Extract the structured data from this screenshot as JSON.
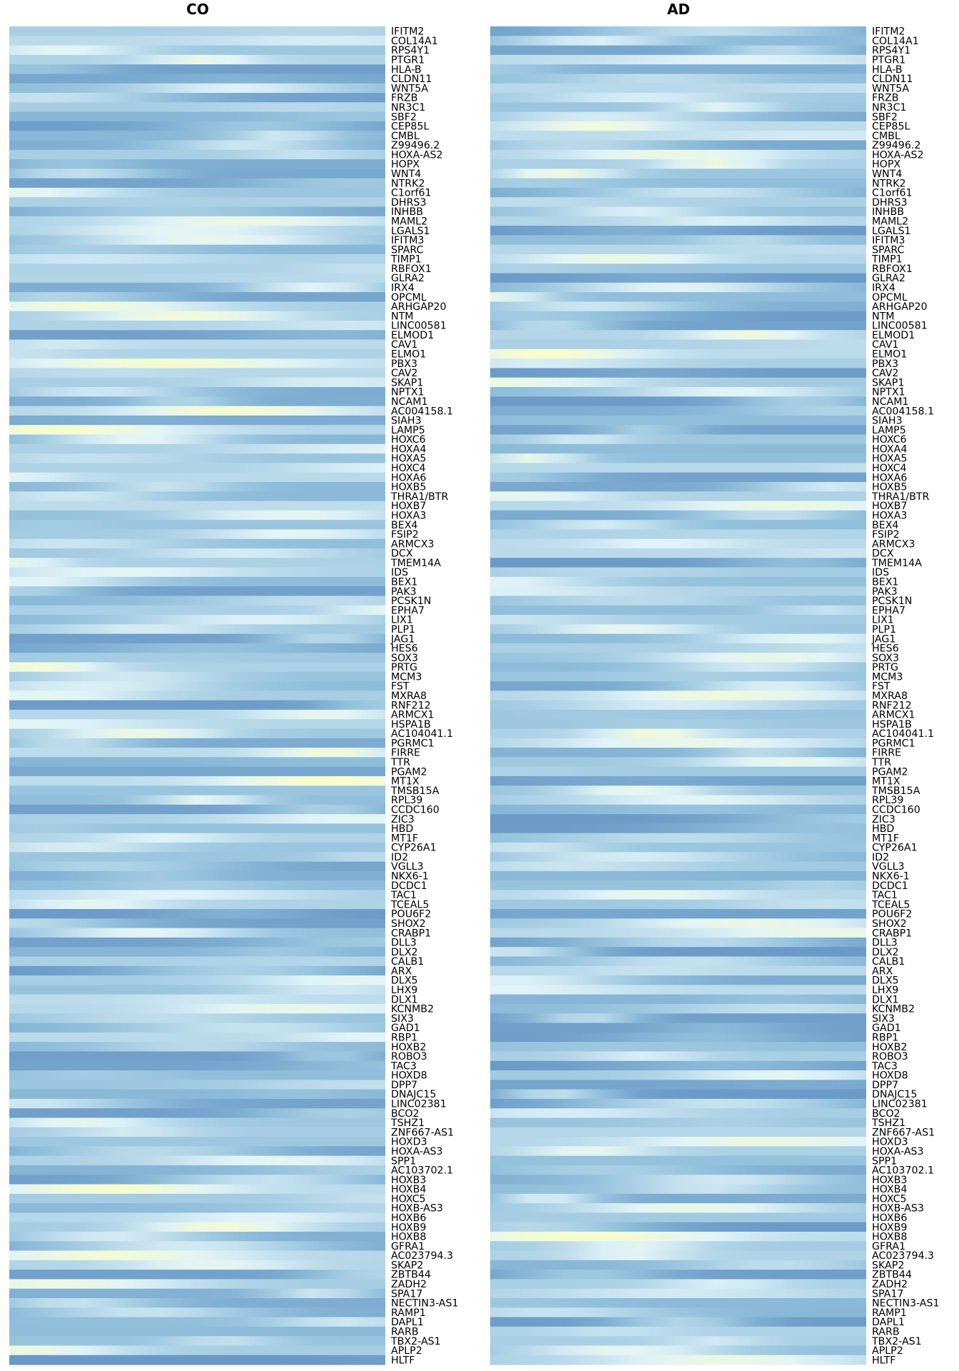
{
  "chart_data": {
    "type": "heatmap",
    "panels": [
      {
        "title": "CO",
        "rows": [
          "IFITM2",
          "COL14A1",
          "RPS4Y1",
          "PTGR1",
          "HLA-B",
          "CLDN11",
          "WNT5A",
          "FRZB",
          "NR3C1",
          "SBF2",
          "CEP85L",
          "CMBL",
          "Z99496.2",
          "HOXA-AS2",
          "HOPX",
          "WNT4",
          "NTRK2",
          "C1orf61",
          "DHRS3",
          "INHBB",
          "MAML2",
          "LGALS1",
          "IFITM3",
          "SPARC",
          "TIMP1",
          "RBFOX1",
          "GLRA2",
          "IRX4",
          "OPCML",
          "ARHGAP20",
          "NTM",
          "LINC00581",
          "ELMOD1",
          "CAV1",
          "ELMO1",
          "PBX3",
          "CAV2",
          "SKAP1",
          "NPTX1",
          "NCAM1",
          "AC004158.1",
          "SIAH3",
          "LAMP5",
          "HOXC6",
          "HOXA4",
          "HOXA5",
          "HOXC4",
          "HOXA6",
          "HOXB5",
          "THRA1/BTR",
          "HOXB7",
          "HOXA3",
          "BEX4",
          "FSIP2",
          "ARMCX3",
          "DCX",
          "TMEM14A",
          "IDS",
          "BEX1",
          "PAK3",
          "PCSK1N",
          "EPHA7",
          "LIX1",
          "PLP1",
          "JAG1",
          "HES6",
          "SOX3",
          "PRTG",
          "MCM3",
          "FST",
          "MXRA8",
          "RNF212",
          "ARMCX1",
          "HSPA1B",
          "AC104041.1",
          "PGRMC1",
          "FIRRE",
          "TTR",
          "PGAM2",
          "MT1X",
          "TMSB15A",
          "RPL39",
          "CCDC160",
          "ZIC3",
          "HBD",
          "MT1F",
          "CYP26A1",
          "ID2",
          "VGLL3",
          "NKX6-1",
          "DCDC1",
          "TAC1",
          "TCEAL5",
          "POU6F2",
          "SHOX2",
          "CRABP1",
          "DLL3",
          "DLX2",
          "CALB1",
          "ARX",
          "DLX5",
          "LHX9",
          "DLX1",
          "KCNMB2",
          "SIX3",
          "GAD1",
          "RBP1",
          "HOXB2",
          "ROBO3",
          "TAC3",
          "HOXD8",
          "DPP7",
          "DNAJC15",
          "LINC02381",
          "BCO2",
          "TSHZ1",
          "ZNF667-AS1",
          "HOXD3",
          "HOXA-AS3",
          "SPP1",
          "AC103702.1",
          "HOXB3",
          "HOXB4",
          "HOXC5",
          "HOXB-AS3",
          "HOXB6",
          "HOXB9",
          "HOXB8",
          "GFRA1",
          "AC023794.3",
          "SKAP2",
          "ZBTB44",
          "ZADH2",
          "SPA17",
          "NECTIN3-AS1",
          "RAMP1",
          "DAPL1",
          "RARB",
          "TBX2-AS1",
          "APLP2",
          "HLTF"
        ]
      },
      {
        "title": "AD",
        "rows": [
          "IFITM2",
          "COL14A1",
          "RPS4Y1",
          "PTGR1",
          "HLA-B",
          "CLDN11",
          "WNT5A",
          "FRZB",
          "NR3C1",
          "SBF2",
          "CEP85L",
          "CMBL",
          "Z99496.2",
          "HOXA-AS2",
          "HOPX",
          "WNT4",
          "NTRK2",
          "C1orf61",
          "DHRS3",
          "INHBB",
          "MAML2",
          "LGALS1",
          "IFITM3",
          "SPARC",
          "TIMP1",
          "RBFOX1",
          "GLRA2",
          "IRX4",
          "OPCML",
          "ARHGAP20",
          "NTM",
          "LINC00581",
          "ELMOD1",
          "CAV1",
          "ELMO1",
          "PBX3",
          "CAV2",
          "SKAP1",
          "NPTX1",
          "NCAM1",
          "AC004158.1",
          "SIAH3",
          "LAMP5",
          "HOXC6",
          "HOXA4",
          "HOXA5",
          "HOXC4",
          "HOXA6",
          "HOXB5",
          "THRA1/BTR",
          "HOXB7",
          "HOXA3",
          "BEX4",
          "FSIP2",
          "ARMCX3",
          "DCX",
          "TMEM14A",
          "IDS",
          "BEX1",
          "PAK3",
          "PCSK1N",
          "EPHA7",
          "LIX1",
          "PLP1",
          "JAG1",
          "HES6",
          "SOX3",
          "PRTG",
          "MCM3",
          "FST",
          "MXRA8",
          "RNF212",
          "ARMCX1",
          "HSPA1B",
          "AC104041.1",
          "PGRMC1",
          "FIRRE",
          "TTR",
          "PGAM2",
          "MT1X",
          "TMSB15A",
          "RPL39",
          "CCDC160",
          "ZIC3",
          "HBD",
          "MT1F",
          "CYP26A1",
          "ID2",
          "VGLL3",
          "NKX6-1",
          "DCDC1",
          "TAC1",
          "TCEAL5",
          "POU6F2",
          "SHOX2",
          "CRABP1",
          "DLL3",
          "DLX2",
          "CALB1",
          "ARX",
          "DLX5",
          "LHX9",
          "DLX1",
          "KCNMB2",
          "SIX3",
          "GAD1",
          "RBP1",
          "HOXB2",
          "ROBO3",
          "TAC3",
          "HOXD8",
          "DPP7",
          "DNAJC15",
          "LINC02381",
          "BCO2",
          "TSHZ1",
          "ZNF667-AS1",
          "HOXD3",
          "HOXA-AS3",
          "SPP1",
          "AC103702.1",
          "HOXB3",
          "HOXB4",
          "HOXC5",
          "HOXB-AS3",
          "HOXB6",
          "HOXB9",
          "HOXB8",
          "GFRA1",
          "AC023794.3",
          "SKAP2",
          "ZBTB44",
          "ZADH2",
          "SPA17",
          "NECTIN3-AS1",
          "RAMP1",
          "DAPL1",
          "RARB",
          "TBX2-AS1",
          "APLP2",
          "HLTF"
        ]
      }
    ],
    "color_scale": [
      "#4575b4",
      "#91bfdb",
      "#e0f3f8",
      "#ffffbf",
      "#fee090",
      "#fc8d59",
      "#d73027"
    ],
    "legend": "none",
    "grid": false
  }
}
